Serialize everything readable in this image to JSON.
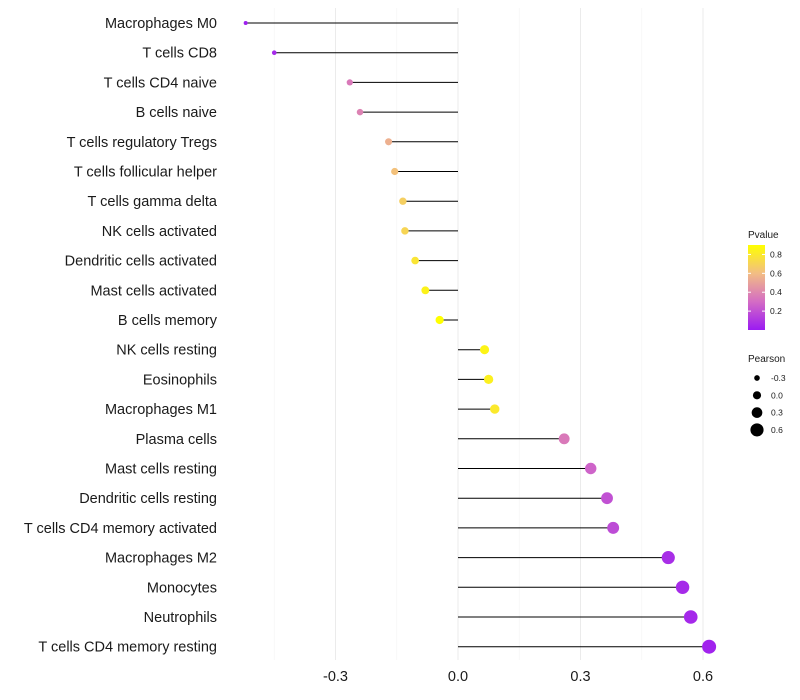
{
  "chart_data": {
    "type": "lollipop",
    "title": "",
    "xlabel": "",
    "ylabel": "",
    "xlim": [
      -0.52,
      0.66
    ],
    "x_ticks": [
      -0.3,
      0.0,
      0.3,
      0.6
    ],
    "x_tick_labels": [
      "-0.3",
      "0.0",
      "0.3",
      "0.6"
    ],
    "grid": true,
    "categories": [
      "Macrophages M0",
      "T cells CD8",
      "T cells CD4 naive",
      "B cells naive",
      "T cells regulatory  Tregs ",
      "T cells follicular helper",
      "T cells gamma delta",
      "NK cells activated",
      "Dendritic cells activated",
      "Mast cells activated",
      "B cells memory",
      "NK cells resting",
      "Eosinophils",
      "Macrophages M1",
      "Plasma cells",
      "Mast cells resting",
      "Dendritic cells resting",
      "T cells CD4 memory activated",
      "Macrophages M2",
      "Monocytes",
      "Neutrophils",
      "T cells CD4 memory resting"
    ],
    "pearson": [
      -0.52,
      -0.45,
      -0.265,
      -0.24,
      -0.17,
      -0.155,
      -0.135,
      -0.13,
      -0.105,
      -0.08,
      -0.045,
      0.065,
      0.075,
      0.09,
      0.26,
      0.325,
      0.365,
      0.38,
      0.515,
      0.55,
      0.57,
      0.615
    ],
    "pvalue": [
      0.02,
      0.05,
      0.35,
      0.38,
      0.55,
      0.62,
      0.68,
      0.71,
      0.78,
      0.84,
      0.9,
      0.85,
      0.83,
      0.8,
      0.35,
      0.27,
      0.2,
      0.18,
      0.07,
      0.06,
      0.05,
      0.03
    ],
    "legend": {
      "position": "right",
      "color": {
        "title": "Pvalue",
        "ticks": [
          0.2,
          0.4,
          0.6,
          0.8
        ],
        "tick_labels": [
          "0.2",
          "0.4",
          "0.6",
          "0.8"
        ],
        "range": [
          0.0,
          0.9
        ],
        "colors": [
          "#9b1bf2",
          "#d46cc4",
          "#f2bd84",
          "#ffff00"
        ]
      },
      "size": {
        "title": "Pearson",
        "values": [
          -0.3,
          0.0,
          0.3,
          0.6
        ],
        "labels": [
          "-0.3",
          "0.0",
          "0.3",
          "0.6"
        ]
      }
    }
  }
}
